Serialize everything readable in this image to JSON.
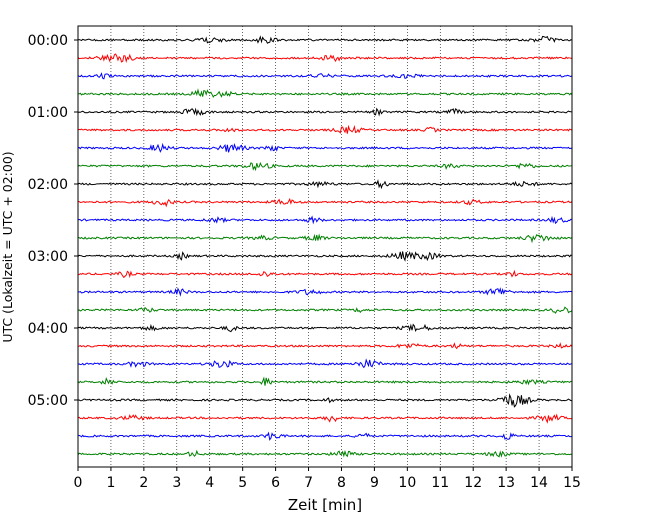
{
  "chart_data": {
    "type": "line",
    "subtype": "seismogram-helicorder",
    "xlabel": "Zeit  [min]",
    "ylabel": "UTC (Lokalzeit = UTC + 02:00)",
    "xlim": [
      0,
      15
    ],
    "x_ticks": [
      "0",
      "1",
      "2",
      "3",
      "4",
      "5",
      "6",
      "7",
      "8",
      "9",
      "10",
      "11",
      "12",
      "13",
      "14",
      "15"
    ],
    "y_tick_labels": [
      "00:00",
      "01:00",
      "02:00",
      "03:00",
      "04:00",
      "05:00"
    ],
    "trace_interval_min": 15,
    "grid": "vertical dotted at each minute",
    "color_cycle": [
      "#000000",
      "#ff0000",
      "#0000ff",
      "#008000"
    ],
    "traces": [
      {
        "start": "00:00"
      },
      {
        "start": "00:15"
      },
      {
        "start": "00:30"
      },
      {
        "start": "00:45"
      },
      {
        "start": "01:00"
      },
      {
        "start": "01:15"
      },
      {
        "start": "01:30"
      },
      {
        "start": "01:45"
      },
      {
        "start": "02:00"
      },
      {
        "start": "02:15"
      },
      {
        "start": "02:30"
      },
      {
        "start": "02:45"
      },
      {
        "start": "03:00"
      },
      {
        "start": "03:15"
      },
      {
        "start": "03:30"
      },
      {
        "start": "03:45"
      },
      {
        "start": "04:00"
      },
      {
        "start": "04:15"
      },
      {
        "start": "04:30"
      },
      {
        "start": "04:45"
      },
      {
        "start": "05:00"
      },
      {
        "start": "05:15"
      },
      {
        "start": "05:30"
      },
      {
        "start": "05:45"
      }
    ]
  }
}
